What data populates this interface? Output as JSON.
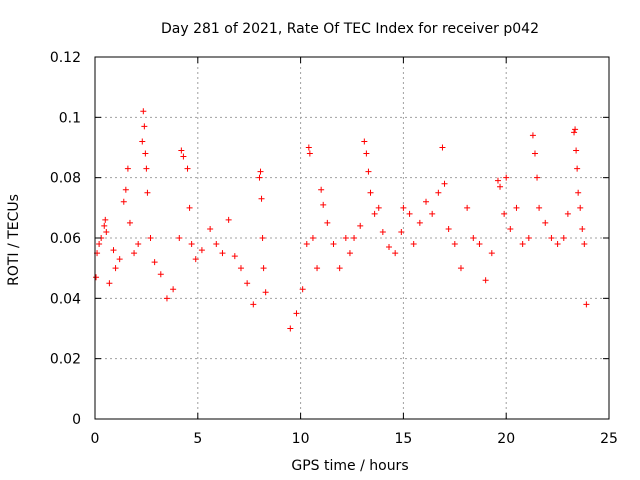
{
  "chart_data": {
    "type": "scatter",
    "title": "Day 281 of 2021, Rate Of TEC Index for receiver p042",
    "xlabel": "GPS time / hours",
    "ylabel": "ROTI / TECUs",
    "xlim": [
      0,
      25
    ],
    "ylim": [
      0,
      0.12
    ],
    "xticks": [
      "0",
      "5",
      "10",
      "15",
      "20",
      "25"
    ],
    "yticks": [
      "0",
      "0.02",
      "0.04",
      "0.06",
      "0.08",
      "0.1",
      "0.12"
    ],
    "grid": true,
    "marker": "plus",
    "color": "#ff0000",
    "series": [
      {
        "name": "",
        "points": [
          [
            0.05,
            0.047
          ],
          [
            0.1,
            0.055
          ],
          [
            0.2,
            0.058
          ],
          [
            0.3,
            0.06
          ],
          [
            0.45,
            0.064
          ],
          [
            0.5,
            0.066
          ],
          [
            0.55,
            0.062
          ],
          [
            0.7,
            0.045
          ],
          [
            0.9,
            0.056
          ],
          [
            1.0,
            0.05
          ],
          [
            1.2,
            0.053
          ],
          [
            1.4,
            0.072
          ],
          [
            1.5,
            0.076
          ],
          [
            1.6,
            0.083
          ],
          [
            1.7,
            0.065
          ],
          [
            1.9,
            0.055
          ],
          [
            2.1,
            0.058
          ],
          [
            2.3,
            0.092
          ],
          [
            2.35,
            0.102
          ],
          [
            2.4,
            0.097
          ],
          [
            2.45,
            0.088
          ],
          [
            2.5,
            0.083
          ],
          [
            2.55,
            0.075
          ],
          [
            2.7,
            0.06
          ],
          [
            2.9,
            0.052
          ],
          [
            3.2,
            0.048
          ],
          [
            3.5,
            0.04
          ],
          [
            3.8,
            0.043
          ],
          [
            4.1,
            0.06
          ],
          [
            4.2,
            0.089
          ],
          [
            4.3,
            0.087
          ],
          [
            4.5,
            0.083
          ],
          [
            4.6,
            0.07
          ],
          [
            4.7,
            0.058
          ],
          [
            4.9,
            0.053
          ],
          [
            5.2,
            0.056
          ],
          [
            5.6,
            0.063
          ],
          [
            5.9,
            0.058
          ],
          [
            6.2,
            0.055
          ],
          [
            6.5,
            0.066
          ],
          [
            6.8,
            0.054
          ],
          [
            7.1,
            0.05
          ],
          [
            7.4,
            0.045
          ],
          [
            7.7,
            0.038
          ],
          [
            8.0,
            0.08
          ],
          [
            8.05,
            0.082
          ],
          [
            8.1,
            0.073
          ],
          [
            8.15,
            0.06
          ],
          [
            8.2,
            0.05
          ],
          [
            8.3,
            0.042
          ],
          [
            9.5,
            0.03
          ],
          [
            9.8,
            0.035
          ],
          [
            10.1,
            0.043
          ],
          [
            10.3,
            0.058
          ],
          [
            10.4,
            0.09
          ],
          [
            10.45,
            0.088
          ],
          [
            10.6,
            0.06
          ],
          [
            10.8,
            0.05
          ],
          [
            11.0,
            0.076
          ],
          [
            11.1,
            0.071
          ],
          [
            11.3,
            0.065
          ],
          [
            11.6,
            0.058
          ],
          [
            11.9,
            0.05
          ],
          [
            12.2,
            0.06
          ],
          [
            12.4,
            0.055
          ],
          [
            12.6,
            0.06
          ],
          [
            12.9,
            0.064
          ],
          [
            13.1,
            0.092
          ],
          [
            13.2,
            0.088
          ],
          [
            13.3,
            0.082
          ],
          [
            13.4,
            0.075
          ],
          [
            13.6,
            0.068
          ],
          [
            13.8,
            0.07
          ],
          [
            14.0,
            0.062
          ],
          [
            14.3,
            0.057
          ],
          [
            14.6,
            0.055
          ],
          [
            14.9,
            0.062
          ],
          [
            15.0,
            0.07
          ],
          [
            15.3,
            0.068
          ],
          [
            15.5,
            0.058
          ],
          [
            15.8,
            0.065
          ],
          [
            16.1,
            0.072
          ],
          [
            16.4,
            0.068
          ],
          [
            16.7,
            0.075
          ],
          [
            16.9,
            0.09
          ],
          [
            17.0,
            0.078
          ],
          [
            17.2,
            0.063
          ],
          [
            17.5,
            0.058
          ],
          [
            17.8,
            0.05
          ],
          [
            18.1,
            0.07
          ],
          [
            18.4,
            0.06
          ],
          [
            18.7,
            0.058
          ],
          [
            19.0,
            0.046
          ],
          [
            19.3,
            0.055
          ],
          [
            19.6,
            0.079
          ],
          [
            19.7,
            0.077
          ],
          [
            19.9,
            0.068
          ],
          [
            20.0,
            0.08
          ],
          [
            20.2,
            0.063
          ],
          [
            20.5,
            0.07
          ],
          [
            20.8,
            0.058
          ],
          [
            21.1,
            0.06
          ],
          [
            21.3,
            0.094
          ],
          [
            21.4,
            0.088
          ],
          [
            21.5,
            0.08
          ],
          [
            21.6,
            0.07
          ],
          [
            21.9,
            0.065
          ],
          [
            22.2,
            0.06
          ],
          [
            22.5,
            0.058
          ],
          [
            22.8,
            0.06
          ],
          [
            23.0,
            0.068
          ],
          [
            23.3,
            0.095
          ],
          [
            23.35,
            0.096
          ],
          [
            23.4,
            0.089
          ],
          [
            23.45,
            0.083
          ],
          [
            23.5,
            0.075
          ],
          [
            23.6,
            0.07
          ],
          [
            23.7,
            0.063
          ],
          [
            23.8,
            0.058
          ],
          [
            23.9,
            0.038
          ]
        ]
      }
    ]
  }
}
